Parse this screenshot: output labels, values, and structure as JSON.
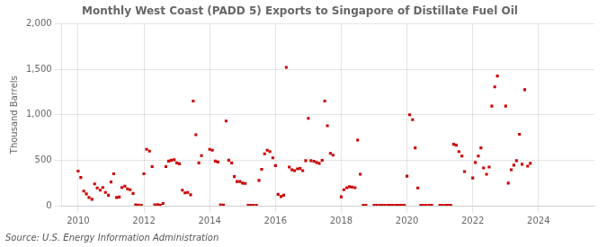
{
  "chart_data": {
    "type": "scatter",
    "title": "Monthly West Coast (PADD 5) Exports to Singapore of Distillate Fuel Oil",
    "ylabel": "Thousand Barrels",
    "annotation": "Source: U.S. Energy Information Administration",
    "color": "#cc0000",
    "marker": "square",
    "grid": true,
    "xlim": [
      2009.5,
      2025.7
    ],
    "xticks": [
      2010,
      2012,
      2014,
      2016,
      2018,
      2020,
      2022,
      2024
    ],
    "ylim": [
      0,
      2000
    ],
    "yticks": [
      0,
      500,
      {
        "value": 1000,
        "label": "1,000"
      },
      {
        "value": 1500,
        "label": "1,500"
      },
      {
        "value": 2000,
        "label": "2,000"
      }
    ],
    "x": [
      2010.0,
      2010.08,
      2010.17,
      2010.25,
      2010.33,
      2010.42,
      2010.5,
      2010.58,
      2010.67,
      2010.75,
      2010.83,
      2010.92,
      2011.0,
      2011.08,
      2011.17,
      2011.25,
      2011.33,
      2011.42,
      2011.5,
      2011.58,
      2011.67,
      2011.75,
      2011.83,
      2011.92,
      2012.0,
      2012.08,
      2012.17,
      2012.25,
      2012.33,
      2012.42,
      2012.5,
      2012.58,
      2012.67,
      2012.75,
      2012.83,
      2012.92,
      2013.0,
      2013.08,
      2013.17,
      2013.25,
      2013.33,
      2013.42,
      2013.5,
      2013.58,
      2013.67,
      2013.75,
      2014.0,
      2014.08,
      2014.17,
      2014.25,
      2014.33,
      2014.42,
      2014.5,
      2014.58,
      2014.67,
      2014.75,
      2014.83,
      2014.92,
      2015.0,
      2015.08,
      2015.17,
      2015.25,
      2015.33,
      2015.42,
      2015.5,
      2015.58,
      2015.67,
      2015.75,
      2015.83,
      2015.92,
      2016.0,
      2016.08,
      2016.17,
      2016.25,
      2016.33,
      2016.42,
      2016.5,
      2016.58,
      2016.67,
      2016.75,
      2016.83,
      2016.92,
      2017.0,
      2017.08,
      2017.17,
      2017.25,
      2017.33,
      2017.42,
      2017.5,
      2017.58,
      2017.67,
      2017.75,
      2018.0,
      2018.08,
      2018.17,
      2018.25,
      2018.33,
      2018.42,
      2018.5,
      2018.58,
      2018.67,
      2018.75,
      2019.0,
      2019.08,
      2019.17,
      2019.25,
      2019.33,
      2019.42,
      2019.5,
      2019.58,
      2019.67,
      2019.75,
      2019.83,
      2019.92,
      2020.0,
      2020.08,
      2020.17,
      2020.25,
      2020.33,
      2020.42,
      2020.5,
      2020.58,
      2020.67,
      2020.75,
      2021.0,
      2021.08,
      2021.17,
      2021.25,
      2021.33,
      2021.42,
      2021.5,
      2021.58,
      2021.67,
      2021.75,
      2022.0,
      2022.08,
      2022.17,
      2022.25,
      2022.33,
      2022.42,
      2022.5,
      2022.58,
      2022.67,
      2022.75,
      2023.0,
      2023.08,
      2023.17,
      2023.25,
      2023.33,
      2023.42,
      2023.5,
      2023.58,
      2023.67,
      2023.75
    ],
    "values": [
      380,
      310,
      160,
      130,
      90,
      70,
      240,
      195,
      170,
      200,
      145,
      115,
      260,
      350,
      90,
      95,
      200,
      215,
      185,
      175,
      135,
      10,
      8,
      5,
      350,
      620,
      600,
      430,
      10,
      12,
      5,
      25,
      430,
      490,
      500,
      505,
      470,
      460,
      170,
      140,
      145,
      120,
      1150,
      780,
      470,
      550,
      620,
      610,
      490,
      480,
      10,
      8,
      930,
      500,
      470,
      320,
      265,
      265,
      248,
      245,
      5,
      5,
      5,
      5,
      278,
      400,
      570,
      610,
      595,
      525,
      440,
      125,
      100,
      115,
      1520,
      425,
      395,
      385,
      405,
      408,
      385,
      495,
      960,
      495,
      488,
      475,
      465,
      498,
      1150,
      878,
      575,
      555,
      98,
      175,
      198,
      208,
      205,
      198,
      720,
      345,
      5,
      5,
      5,
      5,
      5,
      5,
      5,
      5,
      5,
      5,
      5,
      5,
      5,
      5,
      325,
      1000,
      945,
      635,
      195,
      5,
      5,
      5,
      5,
      5,
      5,
      5,
      5,
      5,
      5,
      675,
      665,
      595,
      545,
      375,
      305,
      475,
      545,
      635,
      415,
      345,
      425,
      1095,
      1305,
      1425,
      1095,
      248,
      395,
      445,
      495,
      785,
      455,
      1275,
      435,
      465
    ]
  }
}
